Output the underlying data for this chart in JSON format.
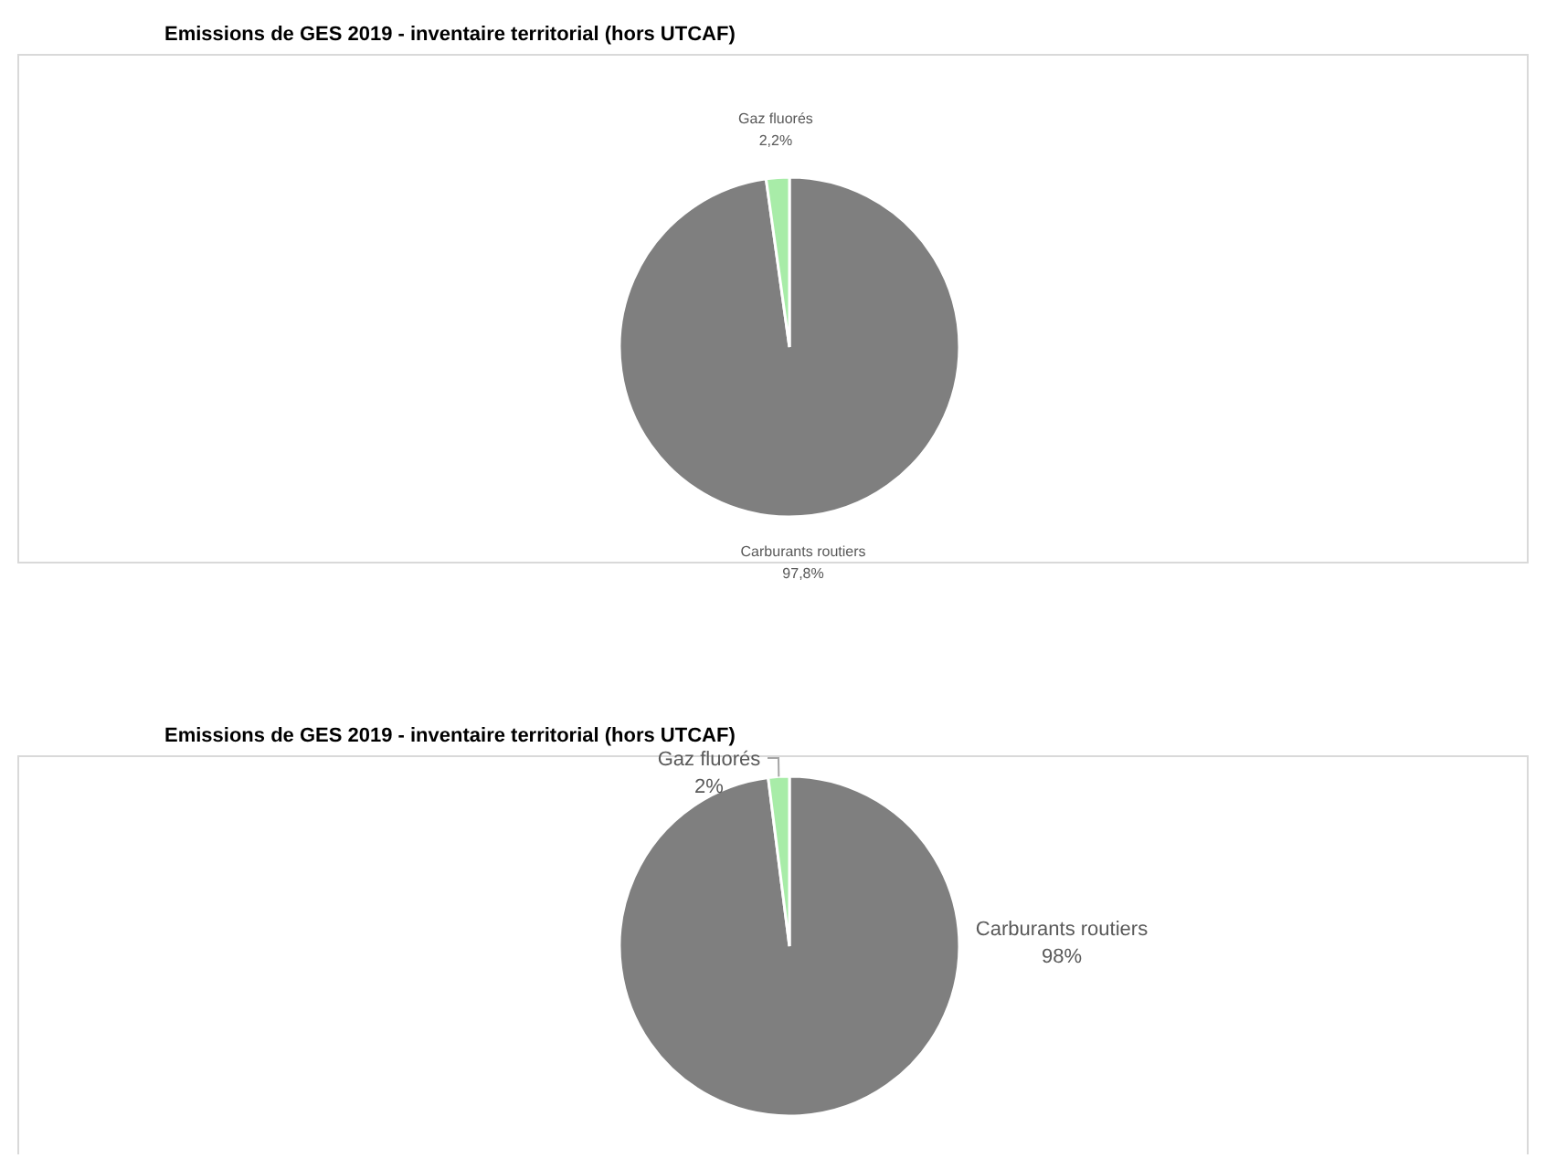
{
  "chart_data": [
    {
      "type": "pie",
      "title": "Emissions de GES 2019 - inventaire territorial (hors UTCAF)",
      "categories": [
        "Carburants routiers",
        "Gaz fluorés"
      ],
      "values": [
        97.8,
        2.2
      ],
      "colors": [
        "#7f7f7f",
        "#a8eca8"
      ],
      "value_labels": [
        "97,8%",
        "2,2%"
      ]
    },
    {
      "type": "pie",
      "title": "Emissions de GES 2019 - inventaire territorial (hors UTCAF)",
      "categories": [
        "Carburants routiers",
        "Gaz fluorés"
      ],
      "values": [
        98,
        2
      ],
      "colors": [
        "#7f7f7f",
        "#a8eca8"
      ],
      "value_labels": [
        "98%",
        "2%"
      ]
    }
  ]
}
